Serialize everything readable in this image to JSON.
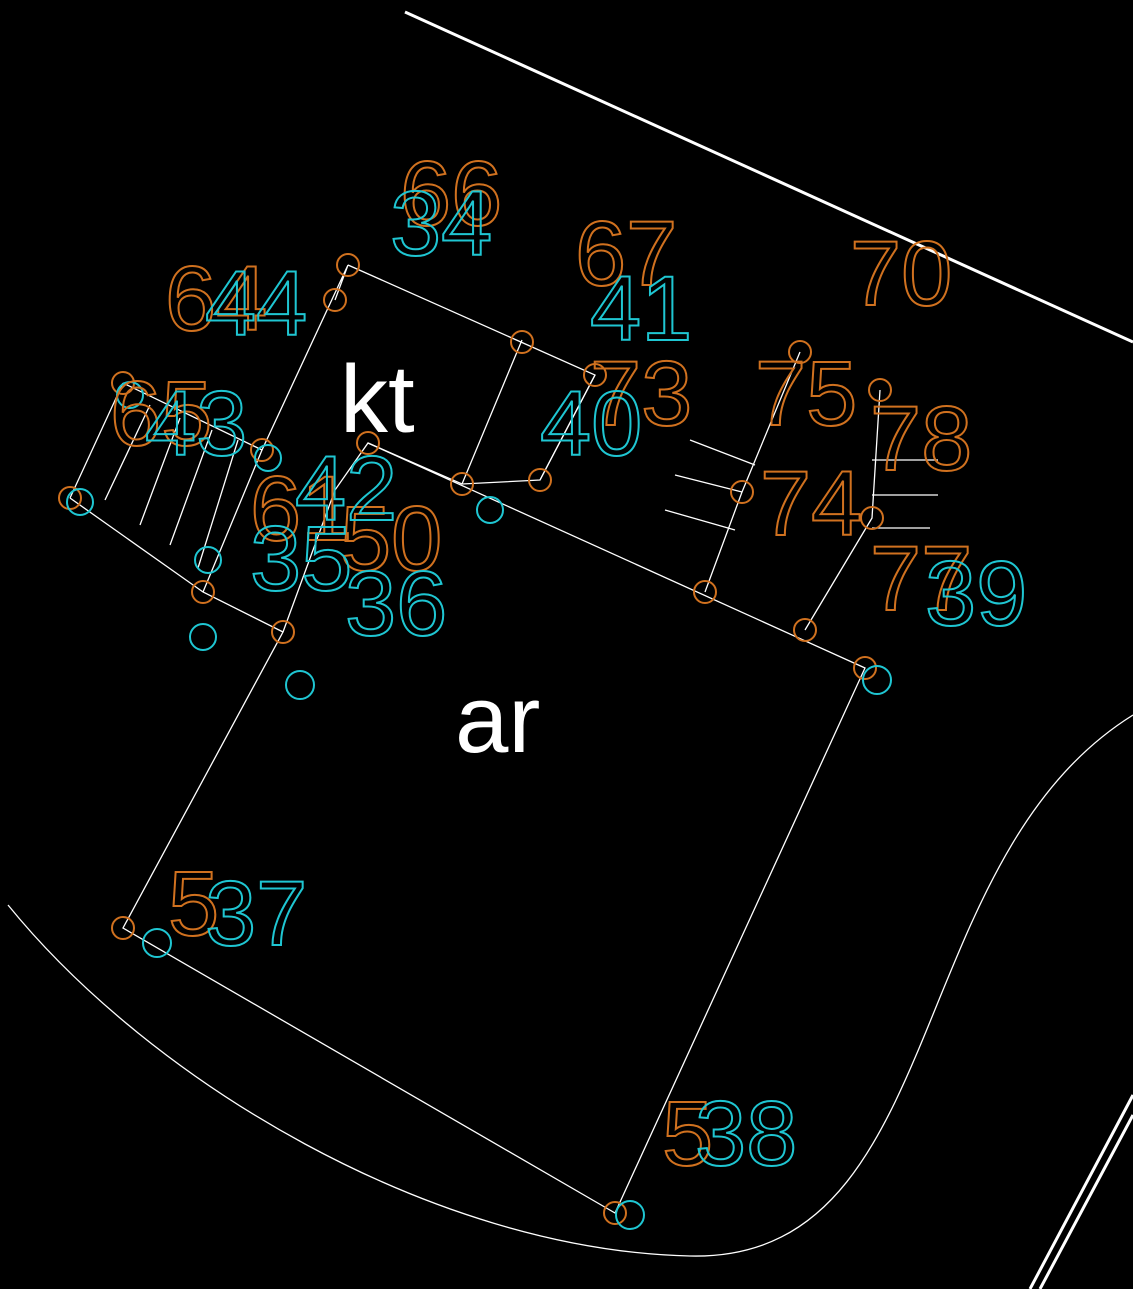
{
  "drawing": {
    "area_labels": [
      "kt",
      "ar"
    ],
    "orange_labels": [
      "66",
      "64",
      "65",
      "67",
      "70",
      "73",
      "75",
      "74",
      "78",
      "77",
      "61",
      "50",
      "5",
      "5"
    ],
    "cyan_labels": [
      "34",
      "44",
      "43",
      "41",
      "40",
      "42",
      "39",
      "35",
      "36",
      "37",
      "38"
    ]
  }
}
